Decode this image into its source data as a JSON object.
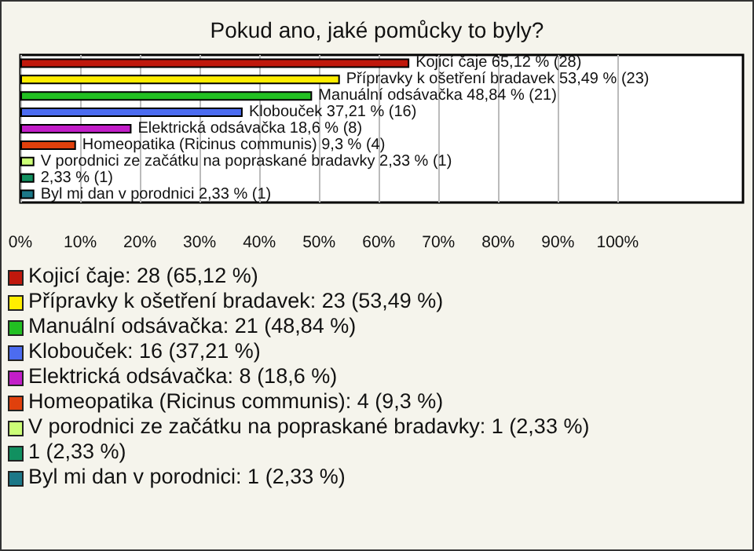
{
  "chart_data": {
    "type": "bar",
    "orientation": "horizontal",
    "title": "Pokud ano, jaké pomůcky to byly?",
    "categories": [
      null,
      null,
      null,
      null,
      null,
      null,
      null,
      null,
      null
    ],
    "values": [
      65.12,
      53.49,
      48.84,
      37.21,
      18.6,
      9.3,
      2.33,
      2.33,
      2.33
    ],
    "colors": [
      "#c0180c",
      "#ffee00",
      "#22c022",
      "#4c6cf0",
      "#c21ec8",
      "#e0400c",
      "#ccff77",
      "#119060",
      "#1c7888"
    ],
    "value_labels": [
      "Kojicí čaje 65,12 % (28)",
      "Přípravky k ošetření bradavek 53,49 % (23)",
      "Manuální odsávačka 48,84 % (21)",
      "Klobouček 37,21 % (16)",
      "Elektrická odsávačka 18,6 % (8)",
      "Homeopatika (Ricinus communis) 9,3 % (4)",
      "V porodnici ze začátku na popraskané bradavky 2,33 % (1)",
      "2,33 % (1)",
      "Byl mi dan v porodnici 2,33 % (1)"
    ],
    "xlim": [
      0,
      121
    ],
    "xticks": [
      {
        "value": 0,
        "label": "0%"
      },
      {
        "value": 10,
        "label": "10%"
      },
      {
        "value": 20,
        "label": "20%"
      },
      {
        "value": 30,
        "label": "30%"
      },
      {
        "value": 40,
        "label": "40%"
      },
      {
        "value": 50,
        "label": "50%"
      },
      {
        "value": 60,
        "label": "60%"
      },
      {
        "value": 70,
        "label": "70%"
      },
      {
        "value": 80,
        "label": "80%"
      },
      {
        "value": 90,
        "label": "90%"
      },
      {
        "value": 100,
        "label": "100%"
      }
    ],
    "grid": "x",
    "tick_labels": "x",
    "annotations": [
      "Kojicí čaje: 28 (65,12 %)",
      "Přípravky k ošetření bradavek: 23 (53,49 %)",
      "Manuální odsávačka: 21 (48,84 %)",
      "Klobouček: 16 (37,21 %)",
      "Elektrická odsávačka: 8 (18,6 %)",
      "Homeopatika (Ricinus communis): 4 (9,3 %)",
      "V porodnici ze začátku na popraskané bradavky: 1 (2,33 %)",
      "1 (2,33 %)",
      "Byl mi dan v porodnici: 1 (2,33 %)"
    ]
  }
}
